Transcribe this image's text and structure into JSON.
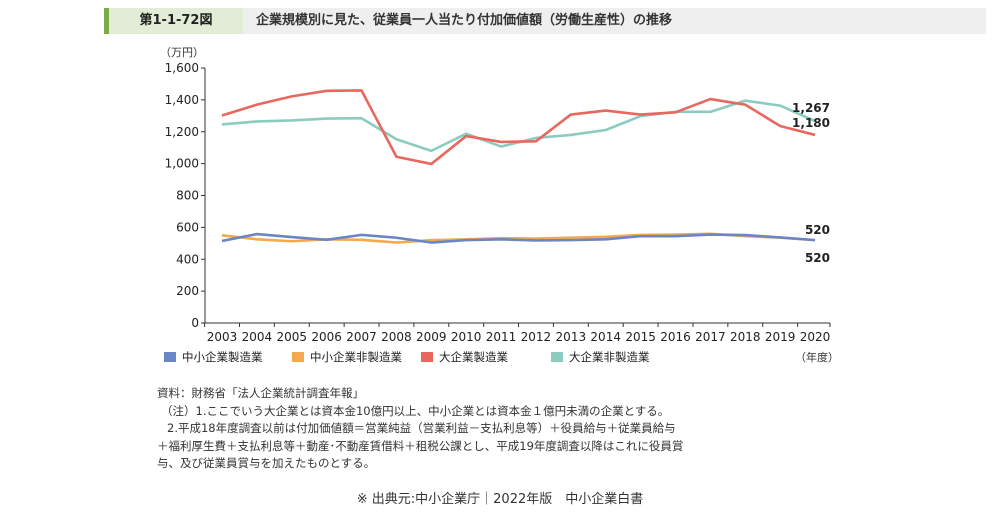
{
  "header": {
    "figure_no": "第1-1-72図",
    "title": "企業規模別に見た、従業員一人当たり付加価値額（労働生産性）の推移"
  },
  "chart_data": {
    "type": "line",
    "ylabel": "（万円）",
    "xlabel": "（年度）",
    "ylim": [
      0,
      1600
    ],
    "yticks": [
      "0",
      "200",
      "400",
      "600",
      "800",
      "1,000",
      "1,200",
      "1,400",
      "1,600"
    ],
    "x": [
      "2003",
      "2004",
      "2005",
      "2006",
      "2007",
      "2008",
      "2009",
      "2010",
      "2011",
      "2012",
      "2013",
      "2014",
      "2015",
      "2016",
      "2017",
      "2018",
      "2019",
      "2020"
    ],
    "series": [
      {
        "name": "中小企業製造業",
        "color": "#6b86c4",
        "values": [
          515,
          558,
          539,
          522,
          553,
          535,
          505,
          520,
          525,
          518,
          520,
          525,
          545,
          545,
          555,
          552,
          537,
          520
        ],
        "end_label": "520"
      },
      {
        "name": "中小企業非製造業",
        "color": "#f5a94e",
        "values": [
          550,
          525,
          513,
          525,
          522,
          505,
          520,
          525,
          532,
          530,
          535,
          541,
          553,
          555,
          560,
          545,
          535,
          520
        ],
        "end_label": "520"
      },
      {
        "name": "大企業製造業",
        "color": "#e8685f",
        "values": [
          1302,
          1370,
          1422,
          1457,
          1459,
          1043,
          998,
          1173,
          1136,
          1140,
          1308,
          1333,
          1308,
          1322,
          1405,
          1370,
          1236,
          1180
        ],
        "end_label": "1,180"
      },
      {
        "name": "大企業非製造業",
        "color": "#8ccbc0",
        "values": [
          1246,
          1265,
          1271,
          1283,
          1285,
          1153,
          1080,
          1188,
          1107,
          1161,
          1180,
          1211,
          1298,
          1325,
          1325,
          1395,
          1364,
          1267
        ],
        "end_label": "1,267"
      }
    ]
  },
  "notes": [
    "資料：財務省「法人企業統計調査年報」",
    "（注）1.ここでいう大企業とは資本金10億円以上、中小企業とは資本金１億円未満の企業とする。",
    "2.平成18年度調査以前は付加価値額＝営業純益（営業利益－支払利息等）＋役員給与＋従業員給与",
    "＋福利厚生費＋支払利息等＋動産･不動産賃借料＋租税公課とし、平成19年度調査以降はこれに役員賞",
    "与、及び従業員賞与を加えたものとする。"
  ],
  "source": "※ 出典元:中小企業庁｜2022年版　中小企業白書"
}
